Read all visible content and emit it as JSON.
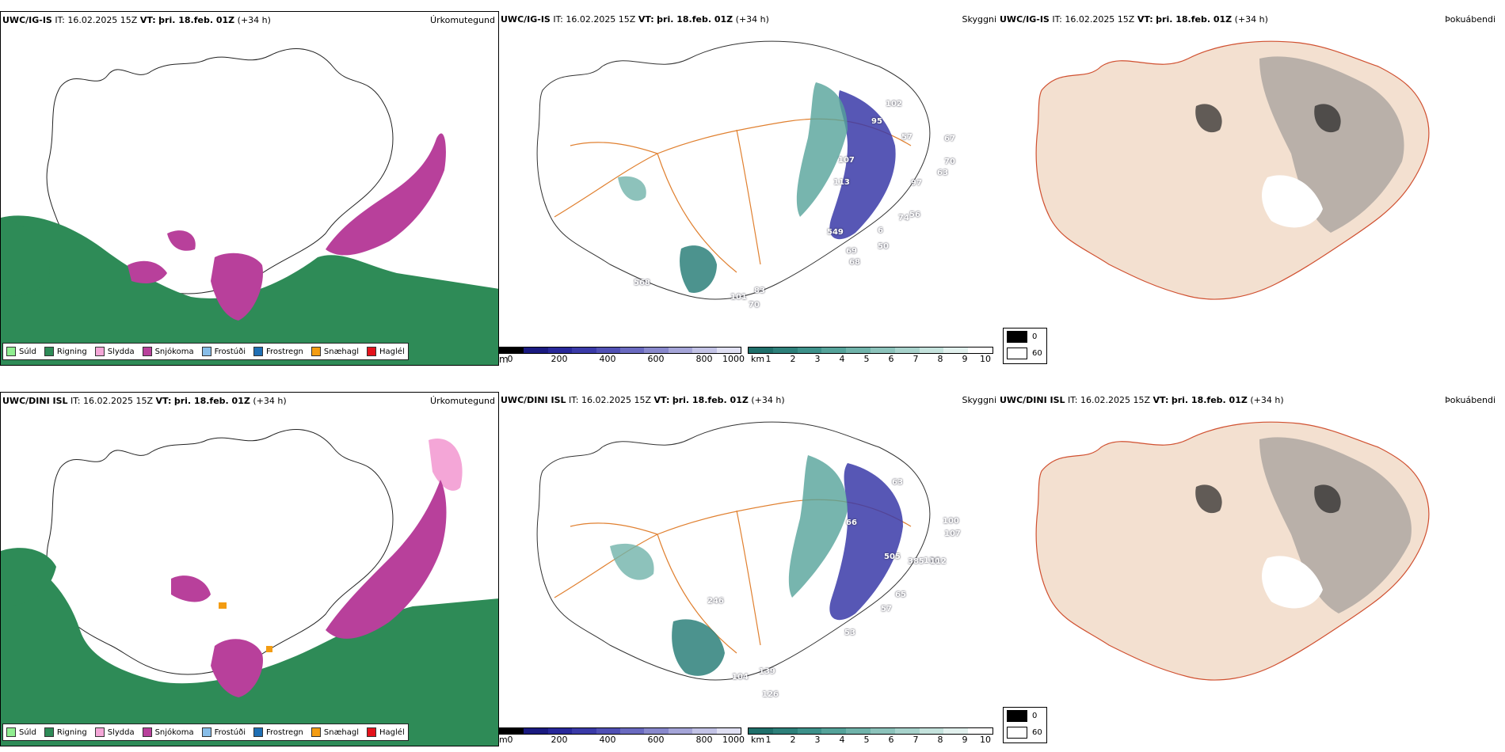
{
  "rows": [
    {
      "model": "UWC/IG-IS",
      "it_label": "IT:",
      "it_value": "16.02.2025 15Z",
      "vt_label": "VT:",
      "vt_value": "þri. 18.feb. 01Z",
      "lead": "(+34 h)",
      "left_title": "Úrkomutegund",
      "mid_title": "Skyggni",
      "right_title": "Þokuábendi",
      "mid_numbers": [
        "102",
        "95",
        "57",
        "67",
        "97",
        "107",
        "63",
        "70",
        "113",
        "74",
        "56",
        "549",
        "6",
        "69",
        "50",
        "68",
        "568",
        "101",
        "83",
        "70"
      ]
    },
    {
      "model": "UWC/DINI ISL",
      "it_label": "IT:",
      "it_value": "16.02.2025 15Z",
      "vt_label": "VT:",
      "vt_value": "þri. 18.feb. 01Z",
      "lead": "(+34 h)",
      "left_title": "Úrkomutegund",
      "mid_title": "Skyggni",
      "right_title": "Þokuábendi",
      "mid_numbers": [
        "63",
        "100",
        "107",
        "66",
        "505",
        "385",
        "136",
        "112",
        "65",
        "57",
        "53",
        "246",
        "104",
        "139",
        "126"
      ]
    }
  ],
  "precip_legend": [
    {
      "label": "Súld",
      "color": "#90ee90"
    },
    {
      "label": "Rigning",
      "color": "#2e8b57"
    },
    {
      "label": "Slydda",
      "color": "#f4a6d7"
    },
    {
      "label": "Snjókoma",
      "color": "#b8409b"
    },
    {
      "label": "Frostúði",
      "color": "#87bde8"
    },
    {
      "label": "Frostregn",
      "color": "#1f6fb4"
    },
    {
      "label": "Snæhagl",
      "color": "#f39c12"
    },
    {
      "label": "Haglél",
      "color": "#e3121b"
    }
  ],
  "cloudbase_bar": {
    "unit": "m",
    "ticks": [
      "0",
      "200",
      "400",
      "600",
      "800",
      "1000"
    ],
    "colors": [
      "#000000",
      "#1a1a80",
      "#28289a",
      "#3a3aa8",
      "#5050b4",
      "#6a6ac0",
      "#8888cc",
      "#a5a5d8",
      "#c3c3e6",
      "#e0e0f3"
    ]
  },
  "visibility_bar": {
    "unit": "km",
    "ticks": [
      "1",
      "2",
      "3",
      "4",
      "5",
      "6",
      "7",
      "8",
      "9",
      "10"
    ],
    "colors": [
      "#1f6f6a",
      "#2d807a",
      "#3d918a",
      "#55a39a",
      "#70b3aa",
      "#8cc3bb",
      "#a8d3cc",
      "#c5e3dd",
      "#e2f1ee",
      "#ffffff"
    ]
  },
  "fog_legend": [
    {
      "label": "0",
      "color": "#000000"
    },
    {
      "label": "60",
      "color": "#ffffff"
    }
  ]
}
